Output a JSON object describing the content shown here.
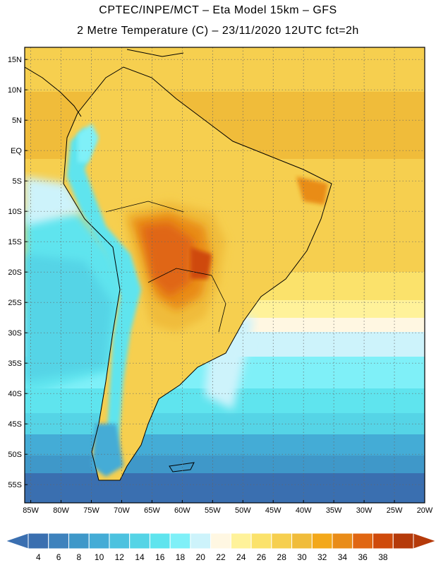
{
  "title_line1": "CPTEC/INPE/MCT –  Eta Model 15km – GFS",
  "title_line2": "2 Metre Temperature (C) – 23/11/2020 12UTC fct=2h",
  "lat_labels": [
    "15N",
    "10N",
    "5N",
    "EQ",
    "5S",
    "10S",
    "15S",
    "20S",
    "25S",
    "30S",
    "35S",
    "40S",
    "45S",
    "50S",
    "55S"
  ],
  "lat_values": [
    15,
    10,
    5,
    0,
    -5,
    -10,
    -15,
    -20,
    -25,
    -30,
    -35,
    -40,
    -45,
    -50,
    -55
  ],
  "lon_labels": [
    "85W",
    "80W",
    "75W",
    "70W",
    "65W",
    "60W",
    "55W",
    "50W",
    "45W",
    "40W",
    "35W",
    "30W",
    "25W",
    "20W"
  ],
  "lon_values": [
    -85,
    -80,
    -75,
    -70,
    -65,
    -60,
    -55,
    -50,
    -45,
    -40,
    -35,
    -30,
    -25,
    -20
  ],
  "map_extent": {
    "lon_min": -86,
    "lon_max": -20,
    "lat_min": -58,
    "lat_max": 17
  },
  "colorbar": {
    "unit": "C",
    "labels": [
      "4",
      "6",
      "8",
      "10",
      "12",
      "14",
      "16",
      "18",
      "20",
      "22",
      "24",
      "26",
      "28",
      "30",
      "32",
      "34",
      "36",
      "38"
    ],
    "colors": [
      "#3a6fb0",
      "#3e82bd",
      "#3f98c9",
      "#44acd6",
      "#4cc2df",
      "#55d4e6",
      "#5fe4ee",
      "#7ff0f8",
      "#cdf3fb",
      "#fff7e2",
      "#fff29a",
      "#fbe26b",
      "#f6cf4f",
      "#f0bc3a",
      "#f3a81a",
      "#e98c18",
      "#e06612",
      "#cf4a0b",
      "#b53a0a"
    ],
    "low_arrow_color": "#3a6fb0",
    "high_arrow_color": "#b53a0a"
  }
}
